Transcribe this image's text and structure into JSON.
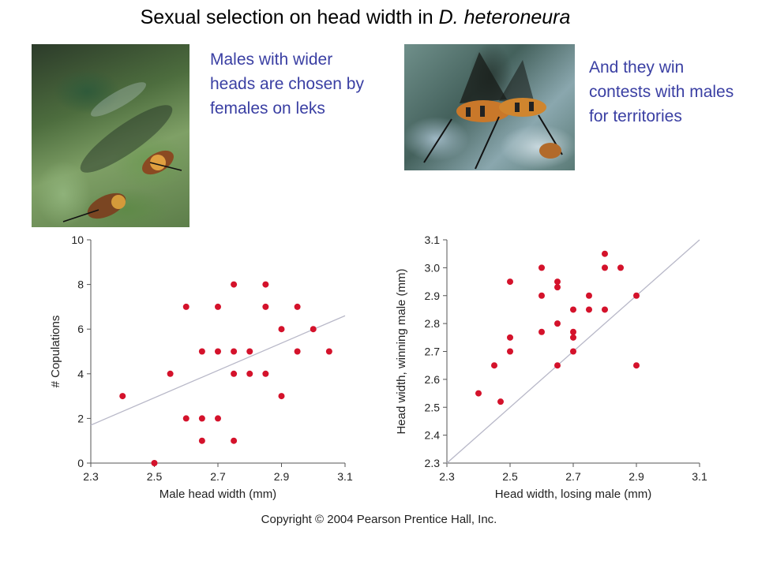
{
  "title_main": "Sexual selection on head width in ",
  "title_species": "D. heteroneura",
  "caption_left": "Males with wider heads are chosen by females on leks",
  "caption_right": "And they win contests with males for territories",
  "copyright": "Copyright © 2004 Pearson Prentice Hall, Inc.",
  "colors": {
    "caption": "#3a3fa3",
    "points": "#d4122b",
    "trendline": "#b8b8c8",
    "axis": "#555555"
  },
  "chart_data": [
    {
      "type": "scatter",
      "xlabel": "Male head width (mm)",
      "ylabel": "# Copulations",
      "xlim": [
        2.3,
        3.1
      ],
      "ylim": [
        0,
        10
      ],
      "xticks": [
        "2.3",
        "2.5",
        "2.7",
        "2.9",
        "3.1"
      ],
      "yticks": [
        "0",
        "2",
        "4",
        "6",
        "8",
        "10"
      ],
      "points": [
        [
          2.4,
          3
        ],
        [
          2.5,
          0
        ],
        [
          2.55,
          4
        ],
        [
          2.6,
          7
        ],
        [
          2.6,
          2
        ],
        [
          2.65,
          5
        ],
        [
          2.65,
          2
        ],
        [
          2.65,
          1
        ],
        [
          2.7,
          7
        ],
        [
          2.7,
          5
        ],
        [
          2.7,
          2
        ],
        [
          2.75,
          8
        ],
        [
          2.75,
          5
        ],
        [
          2.75,
          4
        ],
        [
          2.75,
          1
        ],
        [
          2.8,
          5
        ],
        [
          2.8,
          4
        ],
        [
          2.85,
          8
        ],
        [
          2.85,
          7
        ],
        [
          2.85,
          4
        ],
        [
          2.9,
          6
        ],
        [
          2.9,
          3
        ],
        [
          2.95,
          7
        ],
        [
          2.95,
          5
        ],
        [
          3.0,
          6
        ],
        [
          3.05,
          5
        ]
      ],
      "trendline": [
        [
          2.3,
          1.7
        ],
        [
          3.1,
          6.6
        ]
      ]
    },
    {
      "type": "scatter",
      "xlabel": "Head width, losing male (mm)",
      "ylabel": "Head width, winning male (mm)",
      "xlim": [
        2.3,
        3.1
      ],
      "ylim": [
        2.3,
        3.1
      ],
      "xticks": [
        "2.3",
        "2.5",
        "2.7",
        "2.9",
        "3.1"
      ],
      "yticks": [
        "2.3",
        "2.4",
        "2.5",
        "2.6",
        "2.7",
        "2.8",
        "2.9",
        "3.0",
        "3.1"
      ],
      "points": [
        [
          2.4,
          2.55
        ],
        [
          2.45,
          2.65
        ],
        [
          2.47,
          2.52
        ],
        [
          2.5,
          2.95
        ],
        [
          2.5,
          2.75
        ],
        [
          2.5,
          2.7
        ],
        [
          2.6,
          3.0
        ],
        [
          2.6,
          2.9
        ],
        [
          2.6,
          2.77
        ],
        [
          2.65,
          2.95
        ],
        [
          2.65,
          2.93
        ],
        [
          2.65,
          2.8
        ],
        [
          2.65,
          2.65
        ],
        [
          2.7,
          2.85
        ],
        [
          2.7,
          2.77
        ],
        [
          2.7,
          2.75
        ],
        [
          2.7,
          2.7
        ],
        [
          2.75,
          2.9
        ],
        [
          2.75,
          2.85
        ],
        [
          2.8,
          3.05
        ],
        [
          2.8,
          3.0
        ],
        [
          2.8,
          2.85
        ],
        [
          2.85,
          3.0
        ],
        [
          2.9,
          2.9
        ],
        [
          2.9,
          2.65
        ]
      ],
      "trendline": [
        [
          2.3,
          2.3
        ],
        [
          3.1,
          3.1
        ]
      ]
    }
  ]
}
